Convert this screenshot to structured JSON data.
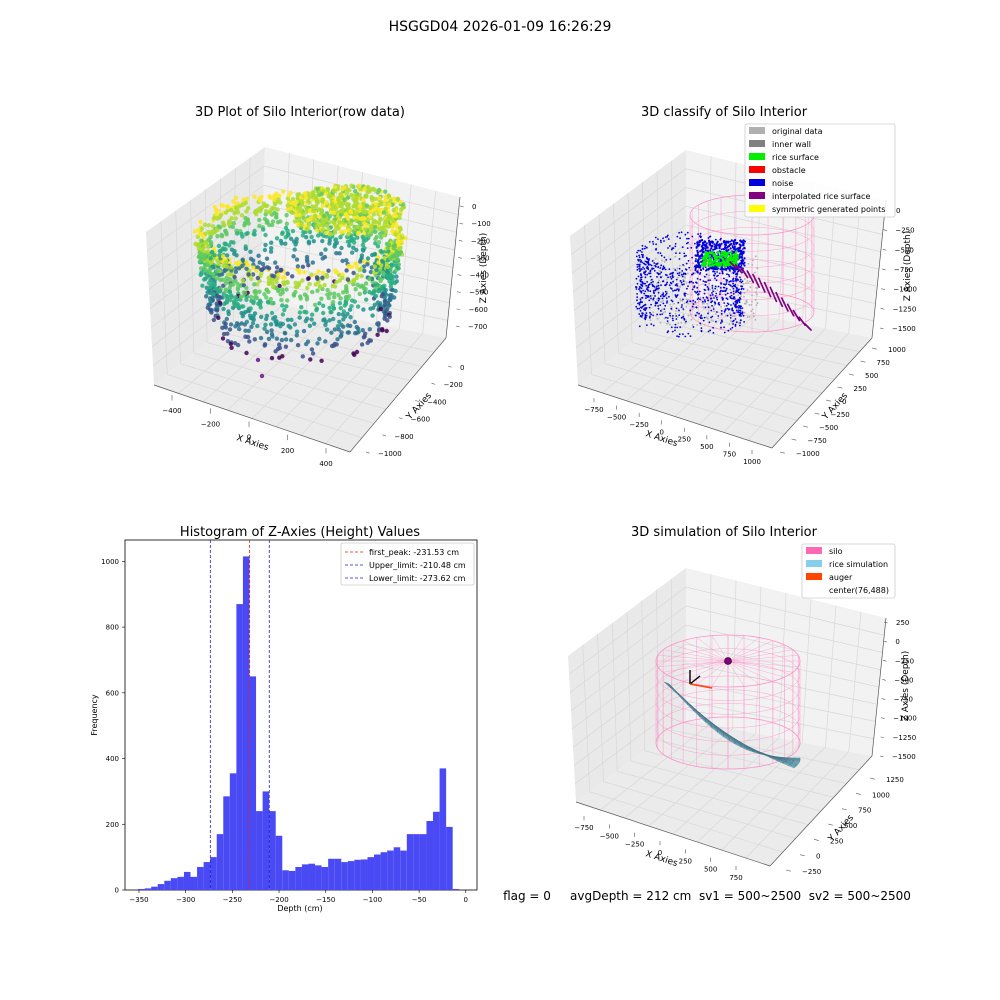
{
  "suptitle": "HSGGD04 2026-01-09 16:26:29",
  "footer": "flag = 0     avgDepth = 212 cm  sv1 = 500~2500  sv2 = 500~2500",
  "chart_data": [
    {
      "type": "scatter3d",
      "title": "3D Plot of Silo Interior(row data)",
      "xlabel": "X Axies",
      "ylabel": "Y Axies",
      "zlabel": "Z Axies (Depth)",
      "xticks": [
        "−400",
        "−200",
        "0",
        "200",
        "400"
      ],
      "yticks": [
        "0",
        "−200",
        "−400",
        "−600",
        "−800",
        "−1000"
      ],
      "zticks": [
        "0",
        "−100",
        "−200",
        "−300",
        "−400",
        "−500",
        "−600",
        "−700"
      ],
      "xlim": [
        -450,
        450
      ],
      "ylim": [
        -1050,
        100
      ],
      "zlim": [
        -760,
        30
      ],
      "colormap": "viridis",
      "description_points": "dense ring of points, yellow at top (z≈0) to purple at bottom (z≈-700)"
    },
    {
      "type": "scatter3d",
      "title": "3D classify of Silo Interior",
      "xlabel": "X Axies",
      "ylabel": "Y Axies",
      "zlabel": "Z Axies (Depth)",
      "xticks": [
        "−750",
        "−500",
        "−250",
        "0",
        "250",
        "500",
        "750",
        "1000"
      ],
      "yticks": [
        "1000",
        "750",
        "500",
        "250",
        "0",
        "−250",
        "−500",
        "−750",
        "−1000"
      ],
      "zticks": [
        "0",
        "−250",
        "−500",
        "−750",
        "−1000",
        "−1250",
        "−1500"
      ],
      "legend": [
        {
          "label": "original data",
          "color": "#b0b0b0"
        },
        {
          "label": "inner wall",
          "color": "#808080"
        },
        {
          "label": "rice surface",
          "color": "#00ee00"
        },
        {
          "label": "obstacle",
          "color": "#ff0000"
        },
        {
          "label": "noise",
          "color": "#0000dd"
        },
        {
          "label": "interpolated rice surface",
          "color": "#800080"
        },
        {
          "label": "symmetric generated points",
          "color": "#ffff00"
        }
      ],
      "legend_loc": "upper right",
      "silo_color": "#ff8fc8"
    },
    {
      "type": "bar",
      "title": "Histogram of Z-Axies (Height) Values",
      "xlabel": "Depth (cm)",
      "ylabel": "Frequency",
      "xlim": [
        -365,
        12
      ],
      "ylim": [
        0,
        1065
      ],
      "xticks": [
        -350,
        -300,
        -250,
        -200,
        -150,
        -100,
        -50,
        0
      ],
      "yticks": [
        0,
        200,
        400,
        600,
        800,
        1000
      ],
      "bin_start": -351,
      "bin_width": 7.02,
      "values": [
        3,
        5,
        10,
        18,
        28,
        36,
        40,
        55,
        40,
        70,
        85,
        100,
        170,
        285,
        355,
        870,
        1015,
        650,
        240,
        300,
        240,
        165,
        60,
        58,
        70,
        78,
        80,
        75,
        70,
        95,
        95,
        85,
        88,
        92,
        93,
        100,
        108,
        115,
        120,
        130,
        120,
        170,
        170,
        170,
        210,
        238,
        370,
        192,
        3
      ],
      "bar_color": "#4a4af5",
      "lines": [
        {
          "label": "first_peak: -231.53 cm",
          "x": -231.53,
          "color": "#e02020"
        },
        {
          "label": "Upper_limit: -210.48 cm",
          "x": -210.48,
          "color": "#2020c0"
        },
        {
          "label": "Lower_limit: -273.62 cm",
          "x": -273.62,
          "color": "#2020c0"
        }
      ],
      "legend_loc": "upper right"
    },
    {
      "type": "surface3d",
      "title": "3D simulation of Silo Interior",
      "xlabel": "X Axies",
      "ylabel": "Y Axies",
      "zlabel": "Z Axies (Depth)",
      "xticks": [
        "−750",
        "−500",
        "−250",
        "0",
        "250",
        "500",
        "750"
      ],
      "yticks": [
        "1250",
        "1000",
        "750",
        "500",
        "250",
        "0",
        "−250"
      ],
      "zticks": [
        "250",
        "0",
        "−250",
        "−500",
        "−750",
        "−1000",
        "−1250",
        "−1500"
      ],
      "legend": [
        {
          "label": "silo",
          "color": "#ff69b4"
        },
        {
          "label": "rice simulation",
          "color": "#87ceeb"
        },
        {
          "label": "auger",
          "color": "#ff4500"
        },
        {
          "label": "center(76,488)",
          "color": ""
        }
      ],
      "legend_loc": "upper right",
      "silo_color": "#ff8fc8",
      "surface_color": "#6fb7cc"
    }
  ]
}
